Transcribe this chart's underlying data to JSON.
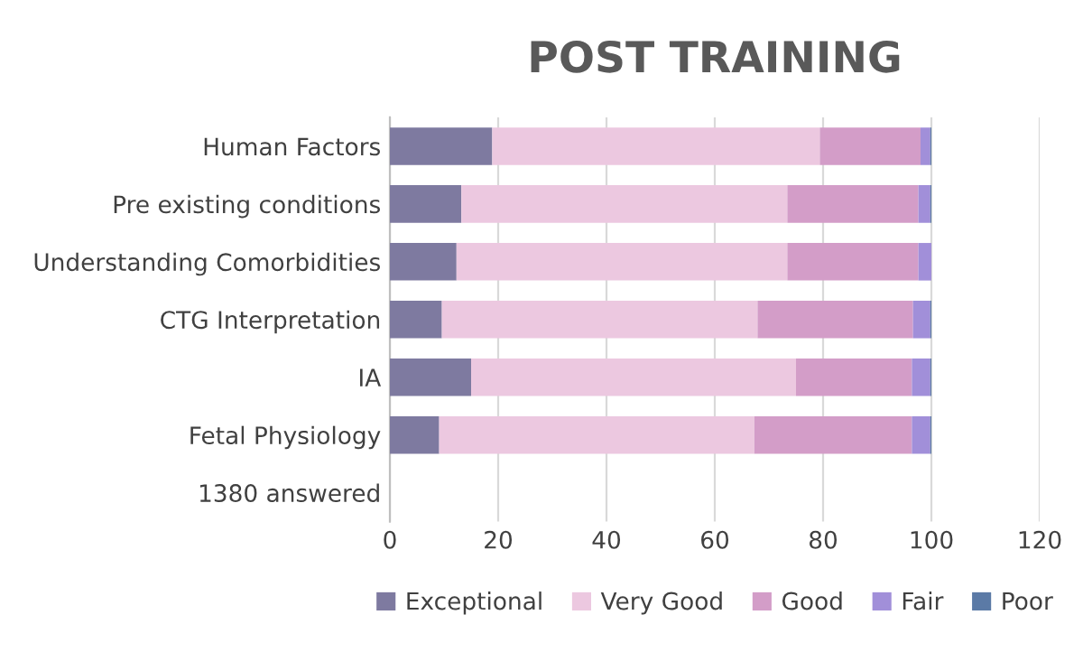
{
  "chart_data": {
    "type": "bar",
    "orientation": "horizontal",
    "stacked": true,
    "title": "POST TRAINING",
    "categories": [
      "Human Factors",
      "Pre existing conditions",
      "Understanding Comorbidities",
      "CTG Interpretation",
      "IA",
      "Fetal Physiology",
      "1380 answered"
    ],
    "series": [
      {
        "name": "Exceptional",
        "color": "#7e7aa0",
        "values": [
          18.9,
          13.2,
          12.3,
          9.6,
          15.0,
          9.1,
          null
        ]
      },
      {
        "name": "Very Good",
        "color": "#ecc8e0",
        "values": [
          60.5,
          60.2,
          61.1,
          58.3,
          60.0,
          58.2,
          null
        ]
      },
      {
        "name": "Good",
        "color": "#d39dc8",
        "values": [
          18.6,
          24.2,
          24.2,
          28.7,
          21.4,
          29.1,
          null
        ]
      },
      {
        "name": "Fair",
        "color": "#a18fd9",
        "values": [
          1.8,
          2.2,
          2.4,
          3.2,
          3.4,
          3.4,
          null
        ]
      },
      {
        "name": "Poor",
        "color": "#5b7aa6",
        "values": [
          0.2,
          0.2,
          0,
          0.2,
          0.2,
          0.2,
          null
        ]
      }
    ],
    "xlim": [
      0,
      120
    ],
    "xticks": [
      0,
      20,
      40,
      60,
      80,
      100,
      120
    ],
    "grid": "x",
    "legend": "bottom"
  }
}
